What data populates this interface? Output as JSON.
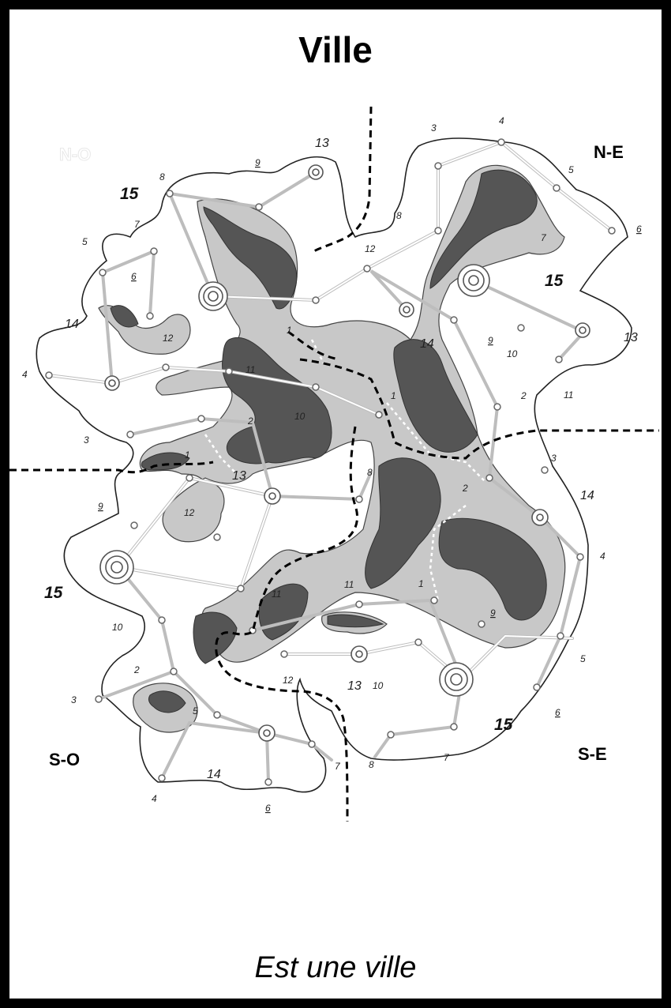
{
  "title": "Ville",
  "caption": "Est une ville",
  "regions": {
    "nw": "N-O",
    "ne": "N-E",
    "sw": "S-O",
    "se": "S-E"
  },
  "labels": {
    "nw": [
      "15",
      "13",
      "9",
      "8",
      "7",
      "5",
      "6",
      "14",
      "4",
      "3",
      "12",
      "11",
      "10",
      "2",
      "1",
      "13"
    ],
    "ne": [
      "3",
      "4",
      "5",
      "6",
      "8",
      "7",
      "12",
      "15",
      "13",
      "9",
      "10",
      "11",
      "14",
      "1",
      "1",
      "2"
    ],
    "sw": [
      "9",
      "12",
      "15",
      "10",
      "2",
      "3",
      "5",
      "14",
      "4",
      "6",
      "7",
      "11",
      "8",
      "13",
      "12"
    ],
    "se": [
      "3",
      "14",
      "4",
      "2",
      "1",
      "11",
      "9",
      "5",
      "6",
      "15",
      "10",
      "7",
      "8",
      "13"
    ]
  },
  "colors": {
    "background": "#000000",
    "card": "#ffffff",
    "district_light": "#c8c8c8",
    "district_dark": "#555555"
  }
}
